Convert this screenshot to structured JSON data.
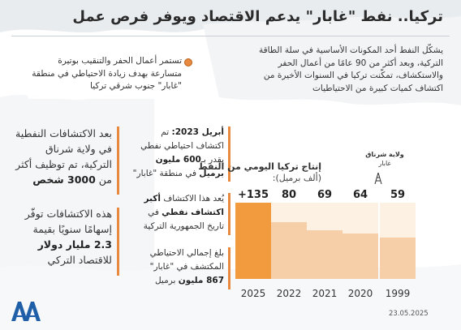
{
  "title": "تركيا.. نفط \"غابار\" يدعم الاقتصاد ويوفر فرص عمل",
  "intro": "يشكّل النفط أحد المكونات الأساسية في سلة الطاقة التركية، وبعد أكثر من 90 عامًا من أعمال الحفر والاستكشاف، تمكّنت تركيا في السنوات الأخيرة من اكتشاف كميات كبيرة من الاحتياطيات",
  "callout": "تستمر أعمال الحفر والتنقيب بوتيرة متسارعة بهدف زيادة الاحتياطي في منطقة \"غابار\" جنوب شرقي تركيا",
  "left_stats": [
    {
      "text": "بعد الاكتشافات النفطية في ولاية شرناق التركية، تم توظيف أكثر من ",
      "bold": "3000 شخص"
    },
    {
      "text": "هذه الاكتشافات توفّر إسهامًا سنويًا بقيمة ",
      "bold": "2.3 مليار دولار",
      "tail": " للاقتصاد التركي"
    }
  ],
  "mid_stats": [
    {
      "bold": "أبريل 2023:",
      "text": " تم اكتشاف احتياطي نفطي يقدر بـ",
      "bold2": "600 مليون برميل",
      "tail": " في منطقة \"غابار\""
    },
    {
      "text": "يُعد هذا الاكتشاف ",
      "bold": "أكبر اكتشاف نفطي",
      "tail": " في تاريخ الجمهورية التركية"
    },
    {
      "text": "بلغ إجمالي الاحتياطي المكتشف في \"غابار\" ",
      "bold": "867 مليون",
      "tail": " برميل"
    }
  ],
  "place": {
    "name": "ولاية شرناق",
    "sub": "غابار"
  },
  "chart_data": {
    "type": "bar",
    "title": "إنتاج تركيا اليومي من النفط",
    "subtitle": "(ألف برميل):",
    "categories": [
      "1999",
      "2020",
      "2021",
      "2022",
      "2025"
    ],
    "value_labels": [
      "59",
      "64",
      "69",
      "80",
      "+135"
    ],
    "values": [
      59,
      64,
      69,
      80,
      135
    ],
    "highlight": "2025",
    "colors": {
      "normal": "#f6cfa8",
      "track": "#fdf1e4",
      "highlight": "#f19a3e"
    }
  },
  "date": "23.05.2025",
  "logo": "aa-logo",
  "colors": {
    "accent": "#e8893f",
    "title": "#2b2b2b"
  }
}
